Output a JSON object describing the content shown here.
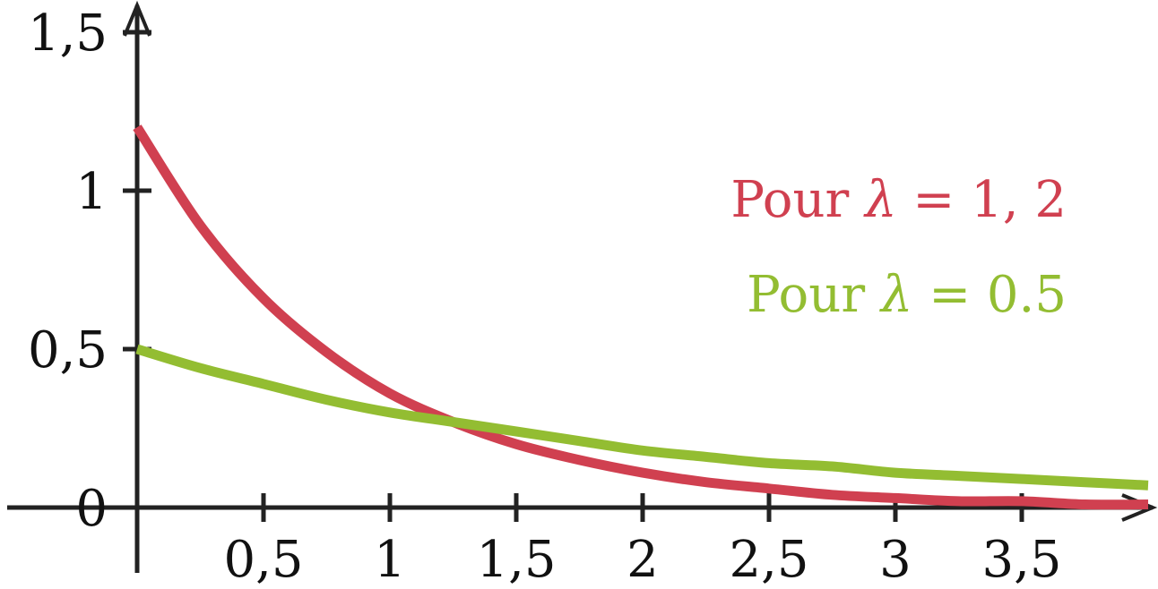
{
  "chart_data": {
    "type": "line",
    "title": "",
    "xlabel": "",
    "ylabel": "",
    "xlim": [
      -0.5,
      4.0
    ],
    "ylim": [
      -0.2,
      1.65
    ],
    "grid": false,
    "legend_placement": "top-right",
    "x_ticks": [
      {
        "value": 0.5,
        "label": "0,5"
      },
      {
        "value": 1,
        "label": "1"
      },
      {
        "value": 1.5,
        "label": "1,5"
      },
      {
        "value": 2,
        "label": "2"
      },
      {
        "value": 2.5,
        "label": "2,5"
      },
      {
        "value": 3,
        "label": "3"
      },
      {
        "value": 3.5,
        "label": "3,5"
      }
    ],
    "y_ticks": [
      {
        "value": 0,
        "label": "0"
      },
      {
        "value": 0.5,
        "label": "0,5"
      },
      {
        "value": 1,
        "label": "1"
      },
      {
        "value": 1.5,
        "label": "1,5"
      }
    ],
    "series": [
      {
        "name": "Pour λ = 1, 2",
        "legend_prefix": "Pour ",
        "legend_symbol": "λ",
        "legend_suffix": " = 1, 2",
        "color": "#d04050",
        "x": [
          0,
          0.25,
          0.5,
          0.75,
          1,
          1.25,
          1.5,
          1.75,
          2,
          2.25,
          2.5,
          2.75,
          3,
          3.25,
          3.5,
          3.75,
          4
        ],
        "y": [
          1.2,
          0.89,
          0.66,
          0.49,
          0.36,
          0.27,
          0.2,
          0.15,
          0.11,
          0.08,
          0.06,
          0.04,
          0.03,
          0.02,
          0.02,
          0.01,
          0.01
        ]
      },
      {
        "name": "Pour λ = 0.5",
        "legend_prefix": "Pour ",
        "legend_symbol": "λ",
        "legend_suffix": " = 0.5",
        "color": "#93bd32",
        "x": [
          0,
          0.25,
          0.5,
          0.75,
          1,
          1.25,
          1.5,
          1.75,
          2,
          2.25,
          2.5,
          2.75,
          3,
          3.25,
          3.5,
          3.75,
          4
        ],
        "y": [
          0.5,
          0.44,
          0.39,
          0.34,
          0.3,
          0.27,
          0.24,
          0.21,
          0.18,
          0.16,
          0.14,
          0.13,
          0.11,
          0.1,
          0.09,
          0.08,
          0.07
        ]
      }
    ]
  }
}
